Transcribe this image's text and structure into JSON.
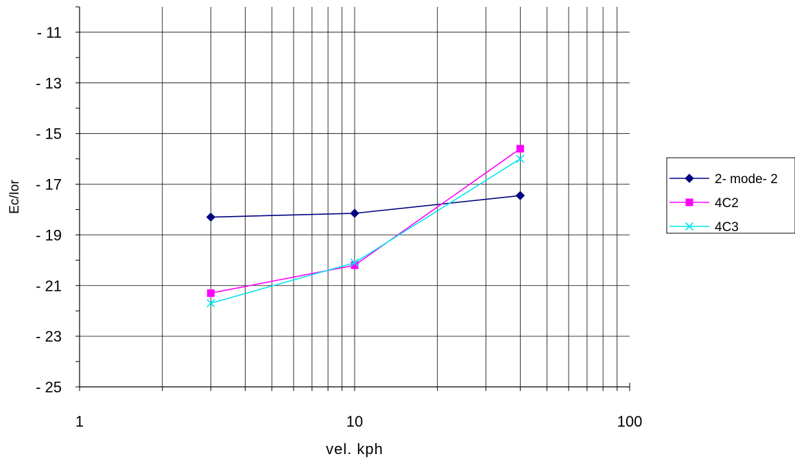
{
  "chart_data": {
    "type": "line",
    "xscale": "log",
    "xlim": [
      1,
      100
    ],
    "ylim": [
      -25,
      -10
    ],
    "xlabel": "vel. kph",
    "ylabel": "Ec/Ior",
    "x_ticks": [
      {
        "value": 1,
        "label": "1"
      },
      {
        "value": 10,
        "label": "10"
      },
      {
        "value": 100,
        "label": "100"
      }
    ],
    "y_ticks": [
      {
        "value": -11,
        "label": "- 11"
      },
      {
        "value": -13,
        "label": "- 13"
      },
      {
        "value": -15,
        "label": "- 15"
      },
      {
        "value": -17,
        "label": "- 17"
      },
      {
        "value": -19,
        "label": "- 19"
      },
      {
        "value": -21,
        "label": "- 21"
      },
      {
        "value": -23,
        "label": "- 23"
      },
      {
        "value": -25,
        "label": "- 25"
      }
    ],
    "grid": true,
    "legend_position": "right",
    "series": [
      {
        "name": "2- mode- 2",
        "color": "#000080",
        "marker": "diamond",
        "x": [
          3,
          10,
          40
        ],
        "y": [
          -18.3,
          -18.15,
          -17.45
        ]
      },
      {
        "name": "4C2",
        "color": "#ff00ff",
        "marker": "square",
        "x": [
          3,
          10,
          40
        ],
        "y": [
          -21.3,
          -20.2,
          -15.6
        ]
      },
      {
        "name": "4C3",
        "color": "#00e5ee",
        "marker": "x",
        "x": [
          3,
          10,
          40
        ],
        "y": [
          -21.7,
          -20.1,
          -16.0
        ]
      }
    ]
  }
}
